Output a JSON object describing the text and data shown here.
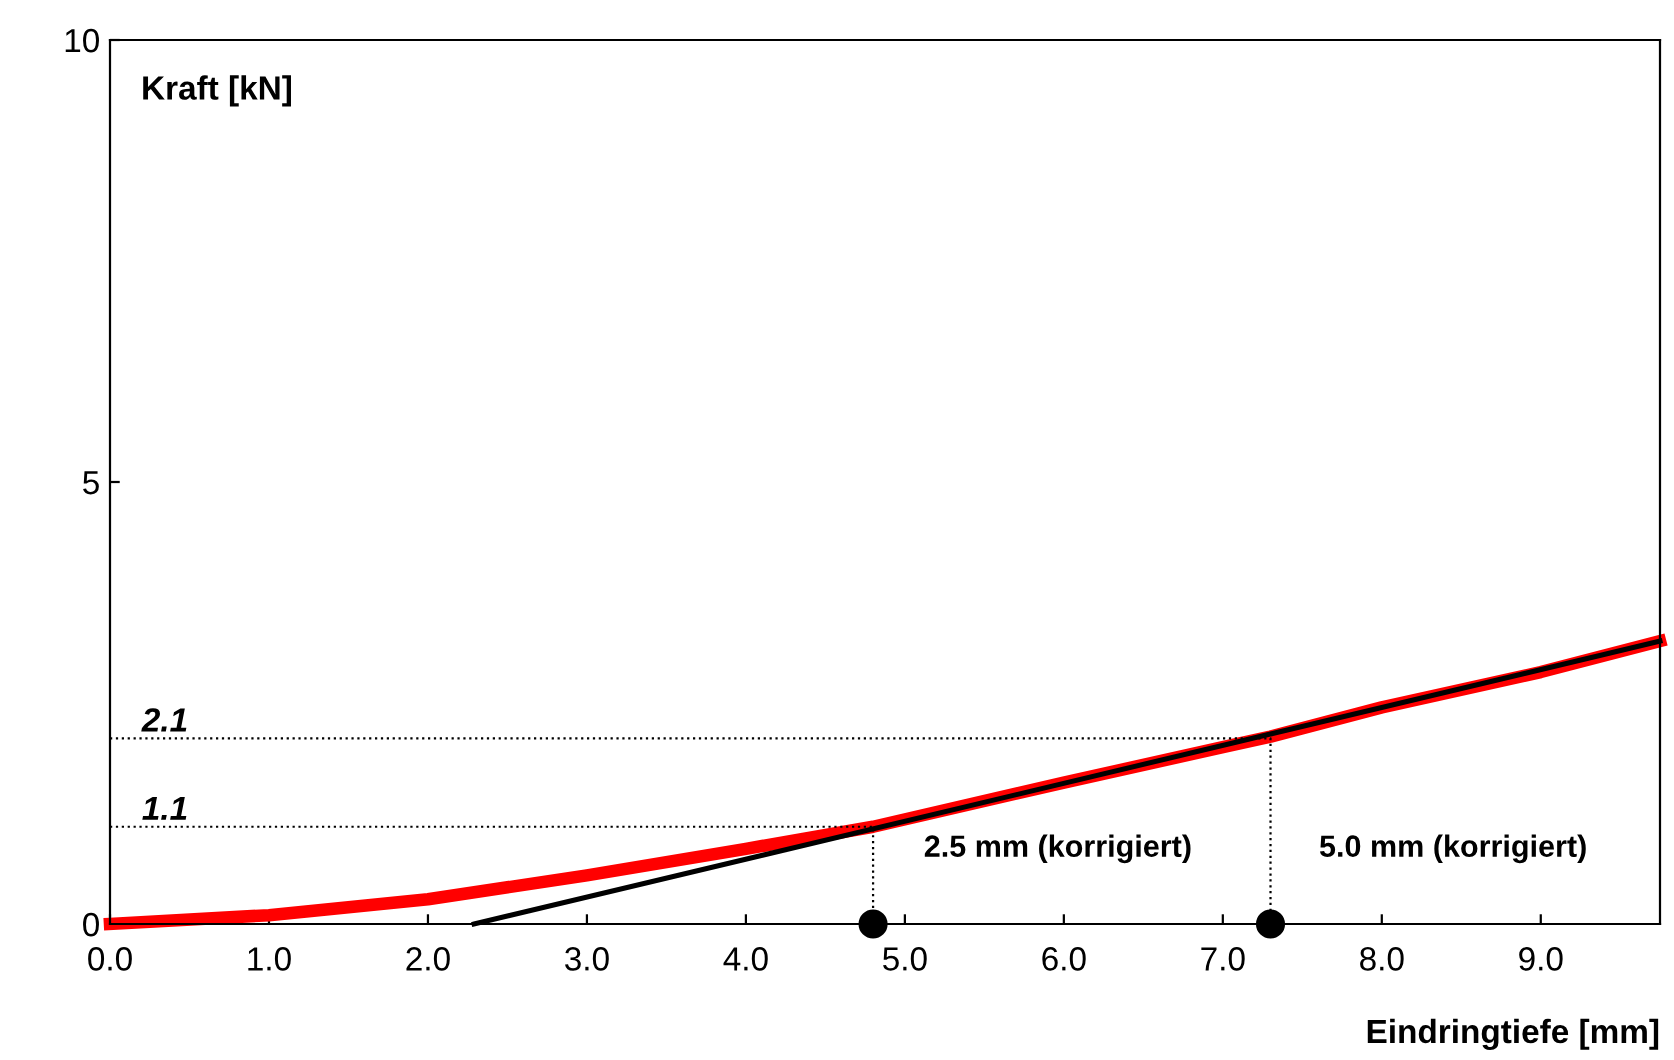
{
  "chart_data": {
    "type": "line",
    "xlabel": "Eindringtiefe [mm]",
    "ylabel": "Kraft [kN]",
    "xlim": [
      0,
      9.75
    ],
    "ylim": [
      0,
      10
    ],
    "xticks": [
      {
        "value": 0,
        "label": "0.0"
      },
      {
        "value": 1,
        "label": "1.0"
      },
      {
        "value": 2,
        "label": "2.0"
      },
      {
        "value": 3,
        "label": "3.0"
      },
      {
        "value": 4,
        "label": "4.0"
      },
      {
        "value": 5,
        "label": "5.0"
      },
      {
        "value": 6,
        "label": "6.0"
      },
      {
        "value": 7,
        "label": "7.0"
      },
      {
        "value": 8,
        "label": "8.0"
      },
      {
        "value": 9,
        "label": "9.0"
      }
    ],
    "yticks": [
      0,
      5,
      10
    ],
    "grid": false,
    "series": [
      {
        "color": "#ff0000",
        "line_style": "solid",
        "marker": "none",
        "x": [
          0,
          1,
          2,
          3,
          4,
          4.8,
          6,
          7,
          7.3,
          8,
          9,
          9.75
        ],
        "values": [
          0,
          0.1,
          0.28,
          0.55,
          0.85,
          1.1,
          1.6,
          2.0,
          2.12,
          2.45,
          2.85,
          3.2
        ]
      },
      {
        "color": "#000000",
        "line_style": "solid",
        "marker": "none",
        "x": [
          2.29,
          9.75
        ],
        "values": [
          0,
          3.2
        ]
      },
      {
        "color": "#000000",
        "line_style": "dotted",
        "marker": "none",
        "x": [
          0,
          4.8,
          4.8
        ],
        "values": [
          1.1,
          1.1,
          0
        ]
      },
      {
        "color": "#000000",
        "line_style": "dotted",
        "marker": "none",
        "x": [
          0,
          7.3,
          7.3
        ],
        "values": [
          2.1,
          2.1,
          0
        ]
      },
      {
        "type": "scatter",
        "color": "#000000",
        "marker": "circle",
        "x": [
          4.8,
          7.3
        ],
        "values": [
          0,
          0
        ]
      }
    ],
    "annotations": [
      {
        "text": "1.1",
        "x": 0.2,
        "y": 1.1
      },
      {
        "text": "2.1",
        "x": 0.2,
        "y": 2.1
      },
      "2.5 mm (korrigiert)",
      "5.0 mm (korrigiert)"
    ]
  }
}
